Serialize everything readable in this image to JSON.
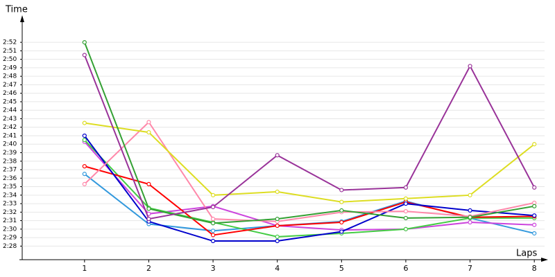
{
  "chart_data": {
    "type": "line",
    "y_label": "Time",
    "x_label": "Laps",
    "x": [
      1,
      2,
      3,
      4,
      5,
      6,
      7,
      8
    ],
    "xlim": [
      0.03,
      8.16
    ],
    "xticks": [
      1,
      2,
      3,
      4,
      5,
      6,
      7,
      8
    ],
    "ylim": [
      146.4,
      174.7
    ],
    "yticks": [
      {
        "value": 148,
        "label": "2:28"
      },
      {
        "value": 149,
        "label": "2:29"
      },
      {
        "value": 150,
        "label": "2:30"
      },
      {
        "value": 151,
        "label": "2:31"
      },
      {
        "value": 152,
        "label": "2:32"
      },
      {
        "value": 153,
        "label": "2:33"
      },
      {
        "value": 154,
        "label": "2:34"
      },
      {
        "value": 155,
        "label": "2:35"
      },
      {
        "value": 156,
        "label": "2:36"
      },
      {
        "value": 157,
        "label": "2:37"
      },
      {
        "value": 158,
        "label": "2:38"
      },
      {
        "value": 159,
        "label": "2:39"
      },
      {
        "value": 160,
        "label": "2:40"
      },
      {
        "value": 161,
        "label": "2:41"
      },
      {
        "value": 162,
        "label": "2:42"
      },
      {
        "value": 163,
        "label": "2:43"
      },
      {
        "value": 164,
        "label": "2:44"
      },
      {
        "value": 165,
        "label": "2:45"
      },
      {
        "value": 166,
        "label": "2:46"
      },
      {
        "value": 167,
        "label": "2:47"
      },
      {
        "value": 168,
        "label": "2:48"
      },
      {
        "value": 169,
        "label": "2:49"
      },
      {
        "value": 170,
        "label": "2:50"
      },
      {
        "value": 171,
        "label": "2:51"
      },
      {
        "value": 172,
        "label": "2:52"
      }
    ],
    "grid": true,
    "series": [
      {
        "color": "#3399dd",
        "values": [
          156.5,
          150.6,
          149.8,
          150.4,
          150.9,
          153.3,
          151.3,
          149.5
        ]
      },
      {
        "color": "#cc44dd",
        "values": [
          160.3,
          151.8,
          152.7,
          150.4,
          149.9,
          150.0,
          150.8,
          150.5
        ]
      },
      {
        "color": "#44cc44",
        "values": [
          160.5,
          152.5,
          150.8,
          149.1,
          149.5,
          150.0,
          151.3,
          151.3
        ]
      },
      {
        "color": "#ff0000",
        "values": [
          157.4,
          155.3,
          149.3,
          150.4,
          150.8,
          153.2,
          151.4,
          151.5
        ]
      },
      {
        "color": "#0000cc",
        "values": [
          161.0,
          150.9,
          148.6,
          148.6,
          149.7,
          153.0,
          152.2,
          151.6
        ]
      },
      {
        "color": "#ff88aa",
        "values": [
          155.3,
          162.6,
          151.2,
          150.9,
          152.0,
          152.1,
          151.5,
          153.1
        ]
      },
      {
        "color": "#dddd22",
        "values": [
          162.5,
          161.4,
          154.0,
          154.4,
          153.2,
          153.6,
          154.0,
          160.0
        ]
      },
      {
        "color": "#33a033",
        "values": [
          172.0,
          152.4,
          150.7,
          151.2,
          152.2,
          151.3,
          151.4,
          152.7
        ]
      },
      {
        "color": "#993399",
        "values": [
          170.5,
          151.2,
          152.6,
          158.7,
          154.6,
          154.9,
          169.2,
          154.9
        ]
      }
    ]
  }
}
